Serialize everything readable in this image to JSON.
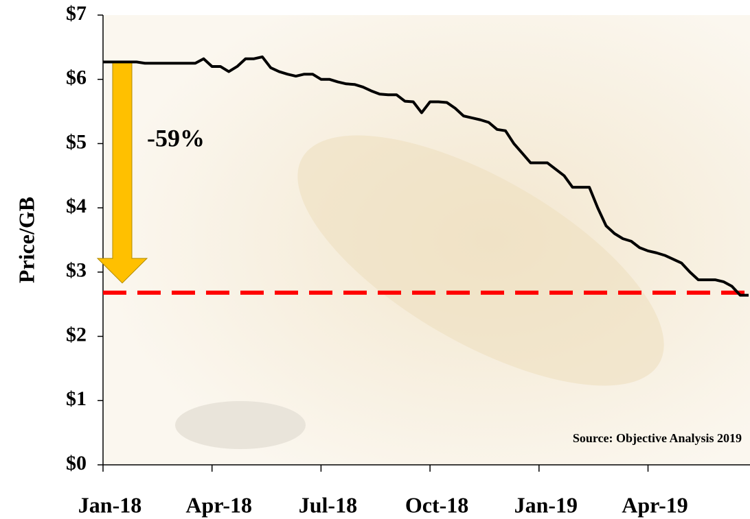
{
  "chart_data": {
    "type": "line",
    "y_label": "Price/GB",
    "annotation": "-59%",
    "source": "Source: Objective Analysis 2019",
    "categories": [
      "Jan-18",
      null,
      null,
      null,
      null,
      null,
      null,
      null,
      null,
      null,
      null,
      null,
      null,
      "Apr-18",
      null,
      null,
      null,
      null,
      null,
      null,
      null,
      null,
      null,
      null,
      null,
      null,
      "Jul-18",
      null,
      null,
      null,
      null,
      null,
      null,
      null,
      null,
      null,
      null,
      null,
      null,
      "Oct-18",
      null,
      null,
      null,
      null,
      null,
      null,
      null,
      null,
      null,
      null,
      null,
      null,
      "Jan-19",
      null,
      null,
      null,
      null,
      null,
      null,
      null,
      null,
      null,
      null,
      null,
      null,
      "Apr-19",
      null,
      null,
      null,
      null,
      null,
      null,
      null,
      null,
      null,
      null,
      null,
      null
    ],
    "series": [
      {
        "color": "#000000",
        "values": [
          6.27,
          6.27,
          6.27,
          6.27,
          6.27,
          6.25,
          6.25,
          6.25,
          6.25,
          6.25,
          6.25,
          6.25,
          6.32,
          6.2,
          6.2,
          6.12,
          6.2,
          6.32,
          6.32,
          6.35,
          6.18,
          6.12,
          6.08,
          6.05,
          6.08,
          6.08,
          6.0,
          6.0,
          5.96,
          5.93,
          5.92,
          5.88,
          5.82,
          5.77,
          5.76,
          5.76,
          5.66,
          5.65,
          5.48,
          5.65,
          5.65,
          5.64,
          5.55,
          5.43,
          5.4,
          5.37,
          5.33,
          5.22,
          5.2,
          5.0,
          4.85,
          4.7,
          4.7,
          4.7,
          4.6,
          4.5,
          4.32,
          4.32,
          4.32,
          4.0,
          3.72,
          3.6,
          3.52,
          3.48,
          3.38,
          3.33,
          3.3,
          3.26,
          3.2,
          3.14,
          3.0,
          2.88,
          2.88,
          2.88,
          2.85,
          2.78,
          2.64,
          2.64
        ]
      }
    ],
    "reference_line": {
      "value": 2.68,
      "color": "#ff0000"
    },
    "arrow_color": "#ffc000",
    "ylim": [
      0,
      7
    ],
    "yticks": [
      {
        "value": 0,
        "label": "$0"
      },
      {
        "value": 1,
        "label": "$1"
      },
      {
        "value": 2,
        "label": "$2"
      },
      {
        "value": 3,
        "label": "$3"
      },
      {
        "value": 4,
        "label": "$4"
      },
      {
        "value": 5,
        "label": "$5"
      },
      {
        "value": 6,
        "label": "$6"
      },
      {
        "value": 7,
        "label": "$7"
      }
    ]
  }
}
